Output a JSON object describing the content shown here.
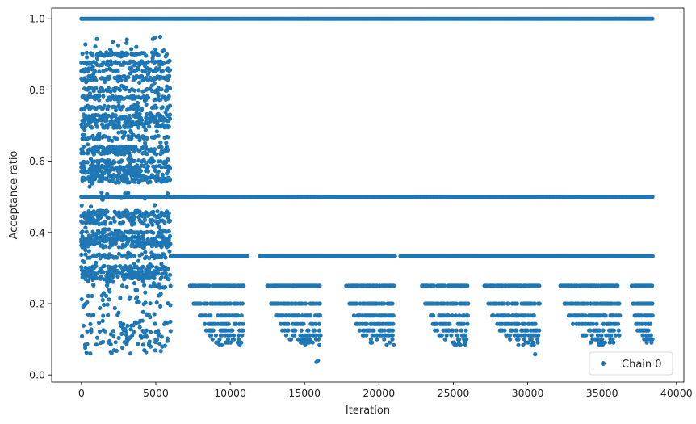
{
  "chart_data": {
    "type": "scatter",
    "xlabel": "Iteration",
    "ylabel": "Acceptance ratio",
    "xlim": [
      -2000,
      40500
    ],
    "ylim": [
      -0.02,
      1.03
    ],
    "xticks": [
      0,
      5000,
      10000,
      15000,
      20000,
      25000,
      30000,
      35000,
      40000
    ],
    "xtick_labels": [
      "0",
      "5000",
      "10000",
      "15000",
      "20000",
      "25000",
      "30000",
      "35000",
      "40000"
    ],
    "yticks": [
      0.0,
      0.2,
      0.4,
      0.6,
      0.8,
      1.0
    ],
    "ytick_labels": [
      "0.0",
      "0.2",
      "0.4",
      "0.6",
      "0.8",
      "1.0"
    ],
    "grid": false,
    "legend_position": "lower-right",
    "series": [
      {
        "name": "Chain 0",
        "color": "#1f77b4",
        "marker": "circle",
        "bands": [
          {
            "y": 1.0,
            "x_range": [
              0,
              38400
            ]
          },
          {
            "y": 0.5,
            "x_range": [
              0,
              38400
            ]
          },
          {
            "y": 0.3333,
            "x_range": [
              0,
              38400
            ]
          },
          {
            "y": 0.25,
            "x_range": [
              0,
              38400
            ]
          },
          {
            "y": 0.2,
            "x_range": [
              0,
              38400
            ]
          },
          {
            "y": 0.1667,
            "x_range": [
              0,
              38400
            ]
          },
          {
            "y": 0.1429,
            "x_range": [
              0,
              38400
            ]
          },
          {
            "y": 0.125,
            "x_range": [
              0,
              38400
            ]
          },
          {
            "y": 0.1111,
            "x_range": [
              0,
              38400
            ]
          },
          {
            "y": 0.1,
            "x_range": [
              0,
              38400
            ]
          },
          {
            "y": 0.0909,
            "x_range": [
              0,
              38400
            ]
          }
        ],
        "early_phase": {
          "x_range": [
            0,
            6000
          ],
          "y_range": [
            0.06,
            0.95
          ]
        },
        "isolated_points": [
          [
            15900,
            0.04
          ],
          [
            15800,
            0.036
          ],
          [
            600,
            0.06
          ],
          [
            3300,
            0.06
          ],
          [
            30500,
            0.058
          ]
        ]
      }
    ]
  }
}
